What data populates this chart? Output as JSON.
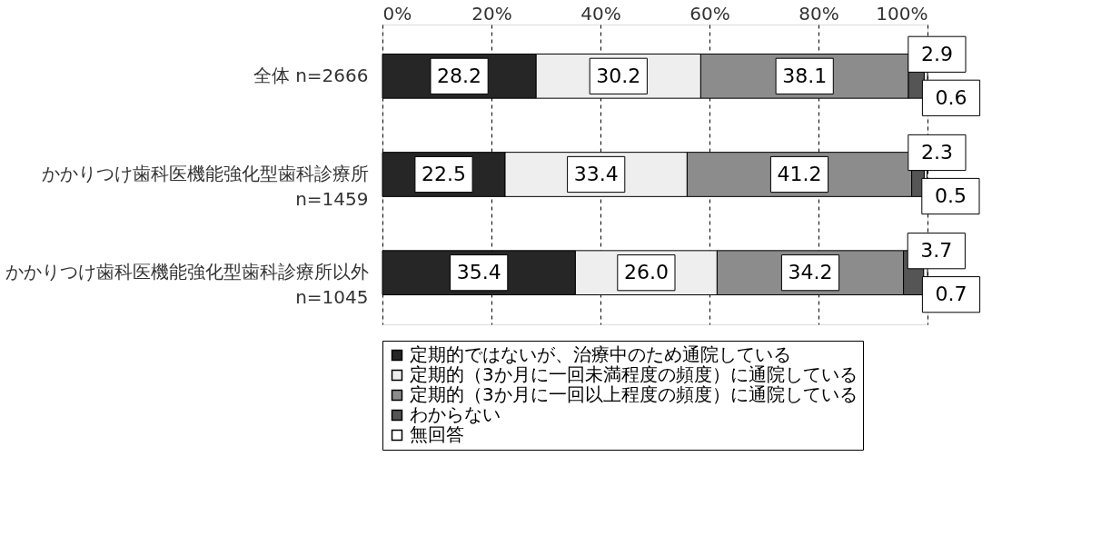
{
  "chart_data": {
    "type": "bar",
    "orientation": "horizontal",
    "stacked": true,
    "legend": "bottom",
    "grid": "x",
    "categories": [
      "全体 n=2666",
      "かかりつけ歯科医機能強化型歯科診療所\nn=1459",
      "かかりつけ歯科医機能強化型歯科診療所以外\nn=1045"
    ],
    "xlim": [
      0,
      100
    ],
    "xticks": [
      {
        "value": 0,
        "label": "0%"
      },
      {
        "value": 20,
        "label": "20%"
      },
      {
        "value": 40,
        "label": "40%"
      },
      {
        "value": 60,
        "label": "60%"
      },
      {
        "value": 80,
        "label": "80%"
      },
      {
        "value": 100,
        "label": "100%"
      }
    ],
    "series": [
      {
        "name": "定期的ではないが、治療中のため通院している",
        "color": "#262626",
        "values": [
          28.2,
          22.5,
          35.4
        ],
        "value_labels": [
          "28.2",
          "22.5",
          "35.4"
        ]
      },
      {
        "name": "定期的（3か月に一回未満程度の頻度）に通院している",
        "color": "#eeeeee",
        "values": [
          30.2,
          33.4,
          26.0
        ],
        "value_labels": [
          "30.2",
          "33.4",
          "26.0"
        ]
      },
      {
        "name": "定期的（3か月に一回以上程度の頻度）に通院している",
        "color": "#8c8c8c",
        "values": [
          38.1,
          41.2,
          34.2
        ],
        "value_labels": [
          "38.1",
          "41.2",
          "34.2"
        ]
      },
      {
        "name": "わからない",
        "color": "#555555",
        "values": [
          2.9,
          2.3,
          3.7
        ],
        "value_labels": [
          "2.9",
          "2.3",
          "3.7"
        ]
      },
      {
        "name": "無回答",
        "color": "#ffffff",
        "values": [
          0.6,
          0.5,
          0.7
        ],
        "value_labels": [
          "0.6",
          "0.5",
          "0.7"
        ]
      }
    ]
  }
}
